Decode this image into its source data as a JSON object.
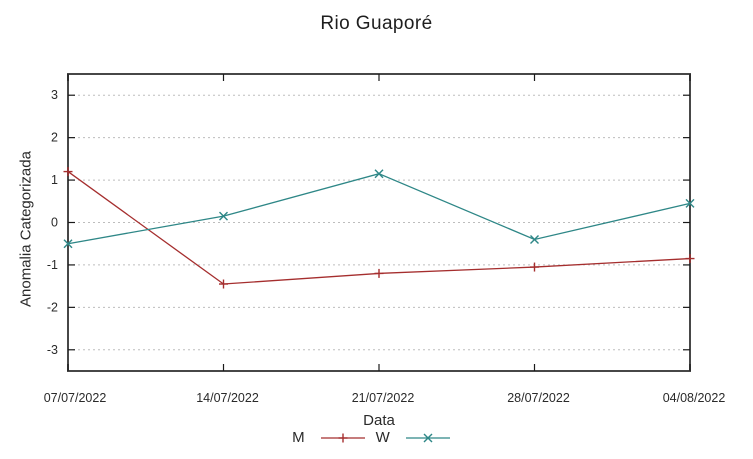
{
  "chart_data": {
    "type": "line",
    "title": "Rio Guaporé",
    "xlabel": "Data",
    "ylabel": "Anomalia Categorizada",
    "categories": [
      "07/07/2022",
      "14/07/2022",
      "21/07/2022",
      "28/07/2022",
      "04/08/2022"
    ],
    "series": [
      {
        "name": "M",
        "marker": "plus",
        "color": "#a52e2e",
        "values": [
          1.2,
          -1.45,
          -1.2,
          -1.05,
          -0.85
        ]
      },
      {
        "name": "W",
        "marker": "cross",
        "color": "#2e8787",
        "values": [
          -0.5,
          0.15,
          1.15,
          -0.4,
          0.45
        ]
      }
    ],
    "ylim": [
      -3.5,
      3.5
    ],
    "y_ticks": [
      -3,
      -2,
      -1,
      0,
      1,
      2,
      3
    ],
    "grid": {
      "horizontal": true,
      "vertical": false,
      "style": "dotted",
      "color": "#bdbdbd"
    },
    "legend_position": "bottom-center",
    "axis_border_color": "#474747",
    "tick_color": "#1a1a1a",
    "text_color": "#2a2a2a",
    "background": "#ffffff"
  }
}
